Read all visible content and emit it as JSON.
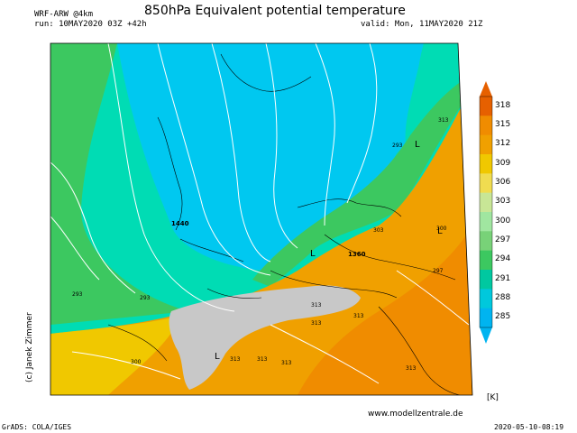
{
  "header": {
    "model": "WRF-ARW @4km",
    "run": "run: 10MAY2020 03Z +42h",
    "title": "850hPa Equivalent potential temperature",
    "valid": "valid: Mon, 11MAY2020 21Z"
  },
  "map": {
    "website": "www.modellzentrale.de",
    "copyright": "(c) Janek Zimmer",
    "contour_labels": [
      "313",
      "293",
      "L",
      "303",
      "300",
      "1440",
      "L",
      "1360",
      "L",
      "297",
      "293",
      "293",
      "313",
      "313",
      "313",
      "L",
      "313",
      "313",
      "313",
      "313",
      "300"
    ],
    "colors": {
      "cold": "#00c8f0",
      "cool": "#00e0c0",
      "green": "#3cc860",
      "warm": "#f0a000",
      "hot": "#f07800",
      "alps": "#c8c8c8"
    }
  },
  "colorbar": {
    "levels": [
      "318",
      "315",
      "312",
      "309",
      "306",
      "303",
      "300",
      "297",
      "294",
      "291",
      "288",
      "285"
    ],
    "colors": [
      "#e66000",
      "#f08c00",
      "#f0a000",
      "#f0c800",
      "#f0dc50",
      "#c8e696",
      "#a0e6a0",
      "#78d278",
      "#3cc860",
      "#00c8a0",
      "#00c8dc",
      "#00b4f0"
    ],
    "unit": "[K]"
  },
  "footer": {
    "left": "GrADS: COLA/IGES",
    "right": "2020-05-10-08:19"
  }
}
